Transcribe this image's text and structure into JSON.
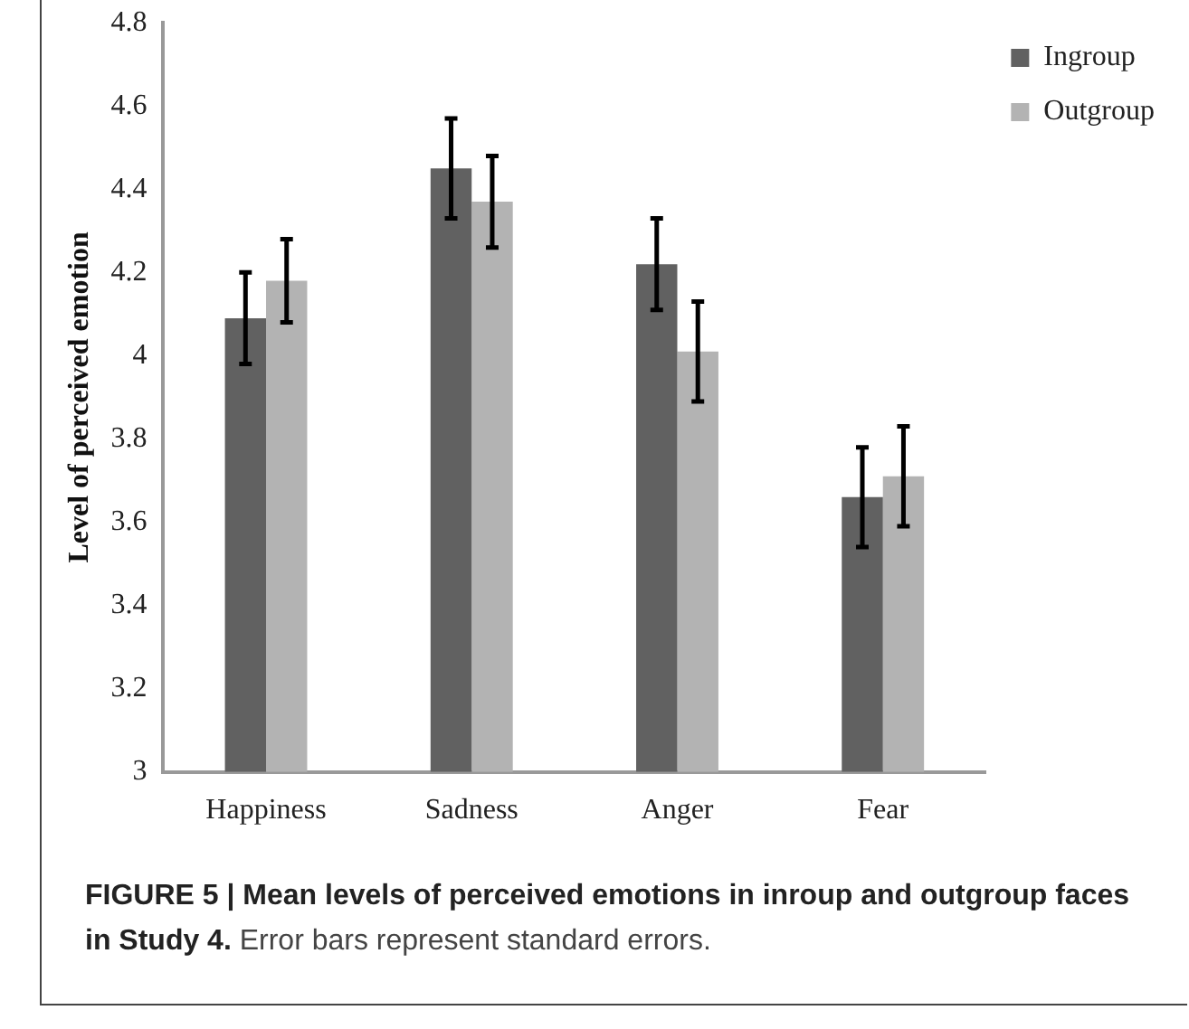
{
  "chart_data": {
    "type": "bar",
    "title": "FIGURE 5 | Mean levels of perceived emotions in inroup and outgroup faces in Study 4.",
    "ylabel": "Level of perceived emotion",
    "annotations": [
      "Error bars represent standard errors."
    ],
    "categories": [
      "Happiness",
      "Sadness",
      "Anger",
      "Fear"
    ],
    "series": [
      {
        "name": "Ingroup",
        "color": "#616161",
        "values": [
          4.09,
          4.45,
          4.22,
          3.66
        ],
        "errors": [
          [
            3.98,
            4.2
          ],
          [
            4.33,
            4.57
          ],
          [
            4.11,
            4.33
          ],
          [
            3.54,
            3.78
          ]
        ]
      },
      {
        "name": "Outgroup",
        "color": "#b3b3b3",
        "values": [
          4.18,
          4.37,
          4.01,
          3.71
        ],
        "errors": [
          [
            4.08,
            4.28
          ],
          [
            4.26,
            4.48
          ],
          [
            3.89,
            4.13
          ],
          [
            3.59,
            3.83
          ]
        ]
      }
    ],
    "ylim": [
      3,
      4.8
    ],
    "yticks": [
      3,
      3.2,
      3.4,
      3.6,
      3.8,
      4,
      4.2,
      4.4,
      4.6,
      4.8
    ],
    "grid": false,
    "legend": "top right"
  }
}
